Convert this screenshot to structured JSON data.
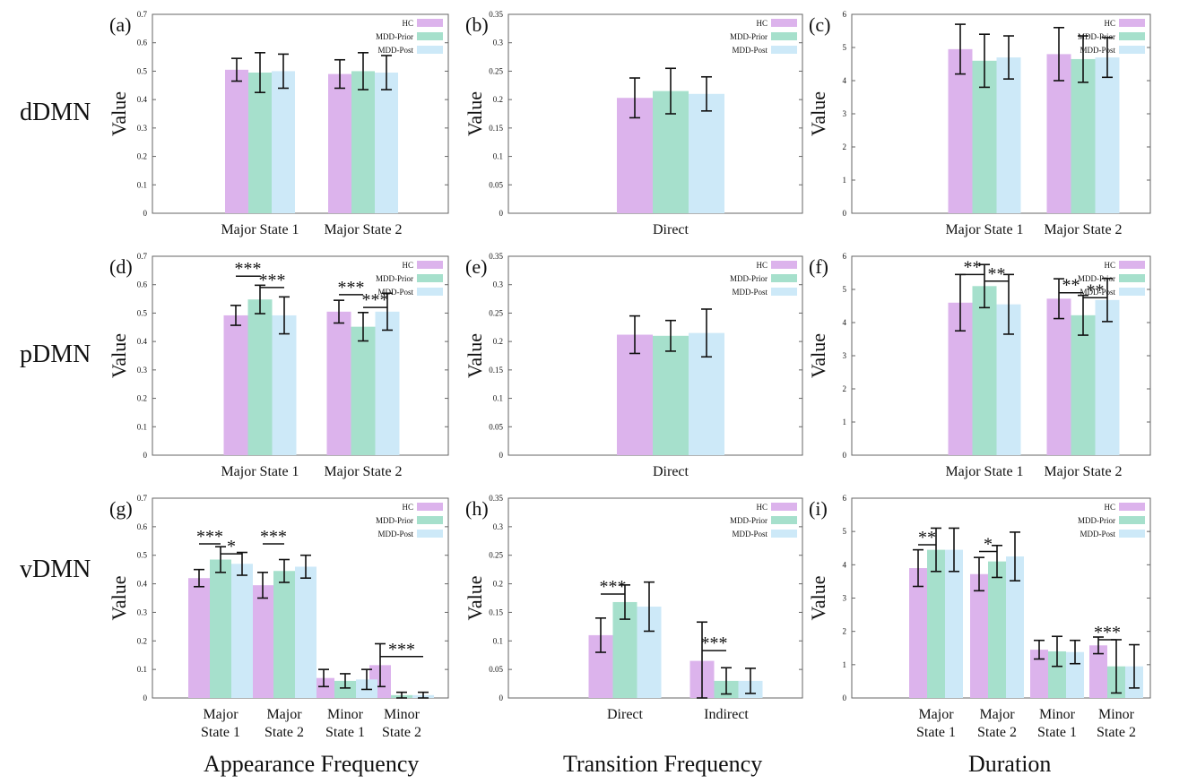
{
  "colors": {
    "HC": "#dcb3ec",
    "MDD-Prior": "#a6e0cc",
    "MDD-Post": "#cde9f8",
    "axis": "#666666"
  },
  "row_labels": [
    "dDMN",
    "pDMN",
    "vDMN"
  ],
  "column_labels": [
    "Appearance Frequency",
    "Transition Frequency",
    "Duration"
  ],
  "chart_data": [
    {
      "panel": "(a)",
      "type": "bar",
      "ylabel": "Value",
      "ylim": [
        0,
        0.7
      ],
      "yticks": [
        "0",
        "0.1",
        "0.2",
        "0.3",
        "0.4",
        "0.5",
        "0.6",
        "0.7"
      ],
      "legend": [
        "HC",
        "MDD-Prior",
        "MDD-Post"
      ],
      "legend_position": "top-right",
      "categories": [
        [
          "Major State 1"
        ],
        [
          "Major State 2"
        ]
      ],
      "series": [
        {
          "name": "HC",
          "values": [
            0.505,
            0.49
          ],
          "err": [
            0.04,
            0.05
          ]
        },
        {
          "name": "MDD-Prior",
          "values": [
            0.495,
            0.5
          ],
          "err": [
            0.07,
            0.065
          ]
        },
        {
          "name": "MDD-Post",
          "values": [
            0.5,
            0.495
          ],
          "err": [
            0.06,
            0.06
          ]
        }
      ],
      "significance": []
    },
    {
      "panel": "(b)",
      "type": "bar",
      "ylabel": "Value",
      "ylim": [
        0,
        0.35
      ],
      "yticks": [
        "0",
        "0.05",
        "0.1",
        "0.15",
        "0.2",
        "0.25",
        "0.3",
        "0.35"
      ],
      "legend": [
        "HC",
        "MDD-Prior",
        "MDD-Post"
      ],
      "legend_position": "top-right",
      "categories": [
        [
          "Direct"
        ]
      ],
      "series": [
        {
          "name": "HC",
          "values": [
            0.203
          ],
          "err": [
            0.035
          ]
        },
        {
          "name": "MDD-Prior",
          "values": [
            0.215
          ],
          "err": [
            0.04
          ]
        },
        {
          "name": "MDD-Post",
          "values": [
            0.21
          ],
          "err": [
            0.03
          ]
        }
      ],
      "significance": []
    },
    {
      "panel": "(c)",
      "type": "bar",
      "ylabel": "Value",
      "ylim": [
        0,
        6
      ],
      "yticks": [
        "0",
        "1",
        "2",
        "3",
        "4",
        "5",
        "6"
      ],
      "legend": [
        "HC",
        "MDD-Prior",
        "MDD-Post"
      ],
      "legend_position": "top-right",
      "categories": [
        [
          "Major State 1"
        ],
        [
          "Major State 2"
        ]
      ],
      "series": [
        {
          "name": "HC",
          "values": [
            4.95,
            4.8
          ],
          "err": [
            0.75,
            0.8
          ]
        },
        {
          "name": "MDD-Prior",
          "values": [
            4.6,
            4.65
          ],
          "err": [
            0.8,
            0.7
          ]
        },
        {
          "name": "MDD-Post",
          "values": [
            4.7,
            4.7
          ],
          "err": [
            0.65,
            0.6
          ]
        }
      ],
      "significance": []
    },
    {
      "panel": "(d)",
      "type": "bar",
      "ylabel": "Value",
      "ylim": [
        0,
        0.7
      ],
      "yticks": [
        "0",
        "0.1",
        "0.2",
        "0.3",
        "0.4",
        "0.5",
        "0.6",
        "0.7"
      ],
      "legend": [
        "HC",
        "MDD-Prior",
        "MDD-Post"
      ],
      "legend_position": "top-right",
      "categories": [
        [
          "Major State 1"
        ],
        [
          "Major State 2"
        ]
      ],
      "series": [
        {
          "name": "HC",
          "values": [
            0.492,
            0.505
          ],
          "err": [
            0.035,
            0.04
          ]
        },
        {
          "name": "MDD-Prior",
          "values": [
            0.548,
            0.452
          ],
          "err": [
            0.05,
            0.05
          ]
        },
        {
          "name": "MDD-Post",
          "values": [
            0.492,
            0.505
          ],
          "err": [
            0.065,
            0.065
          ]
        }
      ],
      "significance": [
        {
          "cat": 0,
          "from": 0,
          "to": 1,
          "y": 0.63,
          "label": "***"
        },
        {
          "cat": 0,
          "from": 1,
          "to": 2,
          "y": 0.59,
          "label": "***"
        },
        {
          "cat": 1,
          "from": 0,
          "to": 1,
          "y": 0.565,
          "label": "***"
        },
        {
          "cat": 1,
          "from": 1,
          "to": 2,
          "y": 0.52,
          "label": "***"
        }
      ]
    },
    {
      "panel": "(e)",
      "type": "bar",
      "ylabel": "Value",
      "ylim": [
        0,
        0.35
      ],
      "yticks": [
        "0",
        "0.05",
        "0.1",
        "0.15",
        "0.2",
        "0.25",
        "0.3",
        "0.35"
      ],
      "legend": [
        "HC",
        "MDD-Prior",
        "MDD-Post"
      ],
      "legend_position": "top-right",
      "categories": [
        [
          "Direct"
        ]
      ],
      "series": [
        {
          "name": "HC",
          "values": [
            0.212
          ],
          "err": [
            0.033
          ]
        },
        {
          "name": "MDD-Prior",
          "values": [
            0.21
          ],
          "err": [
            0.027
          ]
        },
        {
          "name": "MDD-Post",
          "values": [
            0.215
          ],
          "err": [
            0.042
          ]
        }
      ],
      "significance": []
    },
    {
      "panel": "(f)",
      "type": "bar",
      "ylabel": "Value",
      "ylim": [
        0,
        6
      ],
      "yticks": [
        "0",
        "1",
        "2",
        "3",
        "4",
        "5",
        "6"
      ],
      "legend": [
        "HC",
        "MDD-Prior",
        "MDD-Post"
      ],
      "legend_position": "top-right",
      "categories": [
        [
          "Major State 1"
        ],
        [
          "Major State 2"
        ]
      ],
      "series": [
        {
          "name": "HC",
          "values": [
            4.6,
            4.72
          ],
          "err": [
            0.85,
            0.6
          ]
        },
        {
          "name": "MDD-Prior",
          "values": [
            5.1,
            4.22
          ],
          "err": [
            0.65,
            0.6
          ]
        },
        {
          "name": "MDD-Post",
          "values": [
            4.55,
            4.68
          ],
          "err": [
            0.9,
            0.65
          ]
        }
      ],
      "significance": [
        {
          "cat": 0,
          "from": 0,
          "to": 1,
          "y": 5.45,
          "label": "**"
        },
        {
          "cat": 0,
          "from": 1,
          "to": 2,
          "y": 5.25,
          "label": "**"
        },
        {
          "cat": 1,
          "from": 0,
          "to": 1,
          "y": 4.9,
          "label": "**"
        },
        {
          "cat": 1,
          "from": 1,
          "to": 2,
          "y": 4.75,
          "label": "**"
        }
      ]
    },
    {
      "panel": "(g)",
      "type": "bar",
      "ylabel": "Value",
      "ylim": [
        0,
        0.7
      ],
      "yticks": [
        "0",
        "0.1",
        "0.2",
        "0.3",
        "0.4",
        "0.5",
        "0.6",
        "0.7"
      ],
      "legend": [
        "HC",
        "MDD-Prior",
        "MDD-Post"
      ],
      "legend_position": "top-right",
      "categories": [
        [
          "Major",
          "State 1"
        ],
        [
          "Major",
          "State 2"
        ],
        [
          "Minor",
          "State 1"
        ],
        [
          "Minor",
          "State 2"
        ]
      ],
      "series": [
        {
          "name": "HC",
          "values": [
            0.42,
            0.395,
            0.07,
            0.115
          ],
          "err": [
            0.03,
            0.045,
            0.03,
            0.075
          ]
        },
        {
          "name": "MDD-Prior",
          "values": [
            0.485,
            0.445,
            0.06,
            0.01
          ],
          "err": [
            0.045,
            0.04,
            0.025,
            0.01
          ]
        },
        {
          "name": "MDD-Post",
          "values": [
            0.47,
            0.46,
            0.065,
            0.01
          ],
          "err": [
            0.04,
            0.04,
            0.035,
            0.01
          ]
        }
      ],
      "significance": [
        {
          "cat": 0,
          "from": 0,
          "to": 1,
          "y": 0.54,
          "label": "***"
        },
        {
          "cat": 0,
          "from": 1,
          "to": 2,
          "y": 0.505,
          "label": "*"
        },
        {
          "cat": 1,
          "from": 0,
          "to": 1,
          "y": 0.54,
          "label": "***"
        },
        {
          "cat": 3,
          "from": 0,
          "to": 2,
          "y": 0.145,
          "label": "***"
        }
      ]
    },
    {
      "panel": "(h)",
      "type": "bar",
      "ylabel": "Value",
      "ylim": [
        0,
        0.35
      ],
      "yticks": [
        "0",
        "0.05",
        "0.1",
        "0.15",
        "0.2",
        "0.25",
        "0.3",
        "0.35"
      ],
      "legend": [
        "HC",
        "MDD-Prior",
        "MDD-Post"
      ],
      "legend_position": "top-right",
      "categories": [
        [
          "Direct"
        ],
        [
          "Indirect"
        ]
      ],
      "series": [
        {
          "name": "HC",
          "values": [
            0.11,
            0.065
          ],
          "err": [
            0.03,
            0.068
          ]
        },
        {
          "name": "MDD-Prior",
          "values": [
            0.168,
            0.03
          ],
          "err": [
            0.03,
            0.023
          ]
        },
        {
          "name": "MDD-Post",
          "values": [
            0.16,
            0.03
          ],
          "err": [
            0.043,
            0.022
          ]
        }
      ],
      "significance": [
        {
          "cat": 0,
          "from": 0,
          "to": 1,
          "y": 0.182,
          "label": "***"
        },
        {
          "cat": 1,
          "from": 0,
          "to": 1,
          "y": 0.083,
          "label": "***"
        }
      ]
    },
    {
      "panel": "(i)",
      "type": "bar",
      "ylabel": "Value",
      "ylim": [
        0,
        6
      ],
      "yticks": [
        "0",
        "1",
        "2",
        "3",
        "4",
        "5",
        "6"
      ],
      "legend": [
        "HC",
        "MDD-Prior",
        "MDD-Post"
      ],
      "legend_position": "top-right",
      "categories": [
        [
          "Major",
          "State 1"
        ],
        [
          "Major",
          "State 2"
        ],
        [
          "Minor",
          "State 1"
        ],
        [
          "Minor",
          "State 2"
        ]
      ],
      "series": [
        {
          "name": "HC",
          "values": [
            3.9,
            3.72,
            1.45,
            1.58
          ],
          "err": [
            0.55,
            0.5,
            0.28,
            0.25
          ]
        },
        {
          "name": "MDD-Prior",
          "values": [
            4.45,
            4.1,
            1.4,
            0.95
          ],
          "err": [
            0.65,
            0.48,
            0.45,
            0.8
          ]
        },
        {
          "name": "MDD-Post",
          "values": [
            4.45,
            4.25,
            1.38,
            0.95
          ],
          "err": [
            0.65,
            0.73,
            0.35,
            0.65
          ]
        }
      ],
      "significance": [
        {
          "cat": 0,
          "from": 0,
          "to": 1,
          "y": 4.6,
          "label": "**"
        },
        {
          "cat": 1,
          "from": 0,
          "to": 1,
          "y": 4.4,
          "label": "*"
        },
        {
          "cat": 3,
          "from": 0,
          "to": 1,
          "y": 1.75,
          "label": "***"
        }
      ]
    }
  ]
}
